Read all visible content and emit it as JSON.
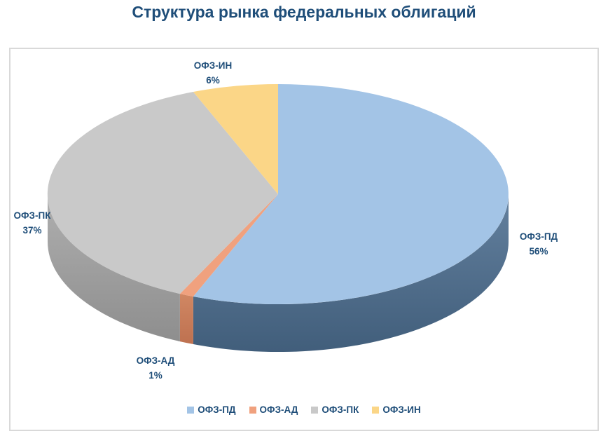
{
  "chart_data": {
    "type": "pie",
    "effect": "3d",
    "title": "Структура рынка федеральных облигаций",
    "legend_position": "bottom",
    "grid": false,
    "categories": [
      "ОФЗ-ПД",
      "ОФЗ-АД",
      "ОФЗ-ПК",
      "ОФЗ-ИН"
    ],
    "values": [
      56,
      1,
      37,
      6
    ],
    "segments": [
      {
        "label": "ОФЗ-ПД",
        "value": 56,
        "pct_label": "56%",
        "color": "#A3C4E6",
        "side_top": "#63809E",
        "side_bottom": "#415E7B"
      },
      {
        "label": "ОФЗ-АД",
        "value": 1,
        "pct_label": "1%",
        "color": "#F0A17E",
        "side_top": "#D08763",
        "side_bottom": "#BE7150"
      },
      {
        "label": "ОФЗ-ПК",
        "value": 37,
        "pct_label": "37%",
        "color": "#C9C9C9",
        "side_top": "#AFAFAF",
        "side_bottom": "#8E8E8E"
      },
      {
        "label": "ОФЗ-ИН",
        "value": 6,
        "pct_label": "6%",
        "color": "#FBD687",
        "side_top": "#DBB667",
        "side_bottom": "#C7A254"
      }
    ],
    "title_color": "#1F4E79",
    "label_color": "#1F4E79",
    "border_color": "#D9D9D9"
  }
}
